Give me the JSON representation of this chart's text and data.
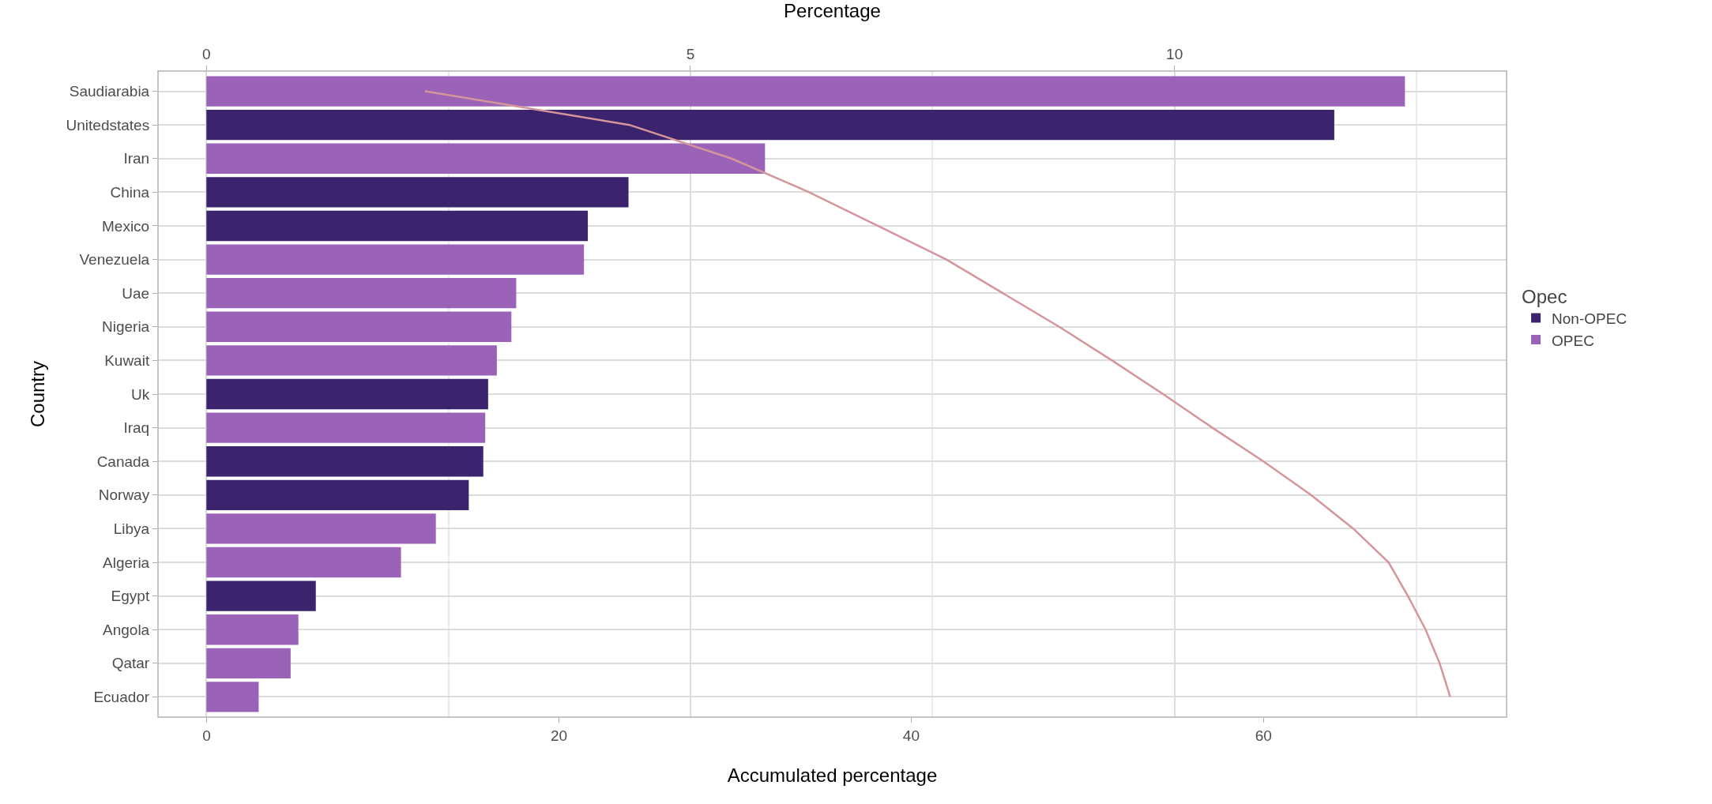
{
  "chart_data": {
    "type": "bar",
    "orientation": "horizontal",
    "xlabel": "Accumulated percentage",
    "x2label": "Percentage",
    "ylabel": "Country",
    "legend_title": "Opec",
    "legend": "right",
    "grid": true,
    "categories": [
      "Saudiarabia",
      "Unitedstates",
      "Iran",
      "China",
      "Mexico",
      "Venezuela",
      "Uae",
      "Nigeria",
      "Kuwait",
      "Uk",
      "Iraq",
      "Canada",
      "Norway",
      "Libya",
      "Algeria",
      "Egypt",
      "Angola",
      "Qatar",
      "Ecuador"
    ],
    "xlim": [
      -2.76,
      73.8
    ],
    "xticks": [
      0,
      20,
      40,
      60
    ],
    "x2lim": [
      -0.5,
      13.43
    ],
    "x2ticks": [
      0,
      5,
      10
    ],
    "series": [
      {
        "name": "Non-OPEC",
        "color": "#3b236d",
        "axis": "x2",
        "values": [
          null,
          11.65,
          null,
          4.36,
          3.94,
          null,
          null,
          null,
          null,
          2.91,
          null,
          2.86,
          2.71,
          null,
          null,
          1.13,
          null,
          null,
          null
        ]
      },
      {
        "name": "OPEC",
        "color": "#9a63b8",
        "axis": "x2",
        "values": [
          12.38,
          null,
          5.77,
          null,
          null,
          3.9,
          3.2,
          3.15,
          3.0,
          null,
          2.88,
          null,
          null,
          2.37,
          2.01,
          null,
          0.95,
          0.87,
          0.54
        ]
      },
      {
        "type": "line",
        "color": "#d4959b",
        "values": [
          12.4,
          24.0,
          29.8,
          34.2,
          38.1,
          42.0,
          45.2,
          48.4,
          51.4,
          54.3,
          57.1,
          60.0,
          62.7,
          65.1,
          67.1,
          68.2,
          69.2,
          70.0,
          70.6
        ]
      }
    ]
  }
}
